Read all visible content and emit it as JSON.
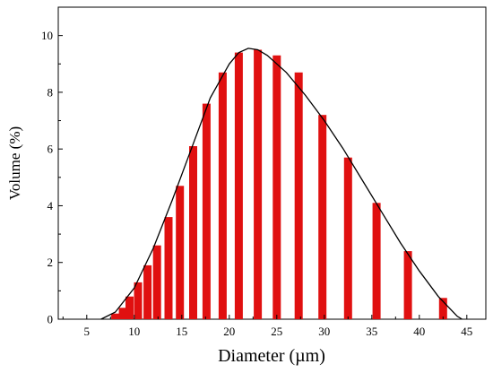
{
  "chart_data": {
    "type": "bar",
    "xlabel": "Diameter (µm)",
    "ylabel": "Volume (%)",
    "xlim": [
      2,
      47
    ],
    "ylim": [
      0,
      11
    ],
    "x_ticks": [
      5,
      10,
      15,
      20,
      25,
      30,
      35,
      40,
      45
    ],
    "y_ticks": [
      0,
      2,
      4,
      6,
      8,
      10
    ],
    "grid": false,
    "legend": "none",
    "series": [
      {
        "type": "bar",
        "color": "#e01010",
        "x": [
          8.0,
          8.8,
          9.5,
          10.4,
          11.4,
          12.4,
          13.6,
          14.8,
          16.2,
          17.6,
          19.3,
          21.0,
          23.0,
          25.0,
          27.3,
          29.8,
          32.5,
          35.5,
          38.8,
          42.5
        ],
        "values": [
          0.2,
          0.4,
          0.8,
          1.3,
          1.9,
          2.6,
          3.6,
          4.7,
          6.1,
          7.6,
          8.7,
          9.4,
          9.5,
          9.3,
          8.7,
          7.2,
          5.7,
          4.1,
          2.4,
          0.75
        ]
      },
      {
        "type": "line",
        "color": "#000000",
        "x": [
          6.5,
          8,
          10,
          12,
          14,
          16,
          18,
          20,
          21,
          22,
          23,
          24,
          26,
          28,
          30,
          32,
          34,
          36,
          38,
          40,
          42,
          44,
          44.5
        ],
        "values": [
          0,
          0.25,
          1.1,
          2.5,
          4.2,
          6.0,
          7.8,
          9.0,
          9.4,
          9.55,
          9.5,
          9.3,
          8.7,
          7.9,
          7.0,
          6.0,
          4.9,
          3.8,
          2.7,
          1.7,
          0.8,
          0.1,
          0
        ]
      }
    ]
  }
}
